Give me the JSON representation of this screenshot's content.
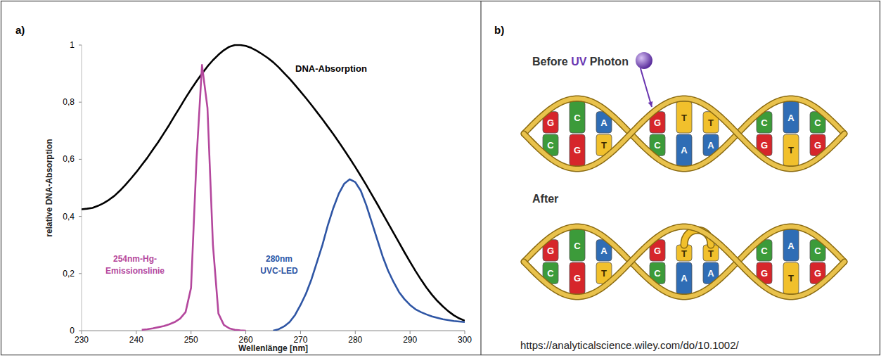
{
  "chart_data": {
    "type": "line",
    "xlabel": "Wellenlänge [nm]",
    "ylabel": "relative DNA-Absorption",
    "x": [
      230,
      231,
      232,
      233,
      234,
      235,
      236,
      237,
      238,
      239,
      240,
      241,
      242,
      243,
      244,
      245,
      246,
      247,
      248,
      249,
      250,
      251,
      252,
      253,
      254,
      255,
      256,
      257,
      258,
      259,
      260,
      261,
      262,
      263,
      264,
      265,
      266,
      267,
      268,
      269,
      270,
      271,
      272,
      273,
      274,
      275,
      276,
      277,
      278,
      279,
      280,
      281,
      282,
      283,
      284,
      285,
      286,
      287,
      288,
      289,
      290,
      291,
      292,
      293,
      294,
      295,
      296,
      297,
      298,
      299,
      300
    ],
    "series": [
      {
        "name": "DNA-Absorption",
        "color": "#000000",
        "line_style": "solid",
        "values": [
          0.425,
          0.427,
          0.43,
          0.437,
          0.446,
          0.458,
          0.472,
          0.49,
          0.51,
          0.532,
          0.555,
          0.58,
          0.605,
          0.633,
          0.66,
          0.69,
          0.72,
          0.752,
          0.783,
          0.815,
          0.845,
          0.873,
          0.9,
          0.925,
          0.947,
          0.966,
          0.982,
          0.994,
          1.0,
          1.0,
          0.997,
          0.99,
          0.98,
          0.968,
          0.955,
          0.94,
          0.922,
          0.902,
          0.882,
          0.86,
          0.837,
          0.814,
          0.79,
          0.765,
          0.74,
          0.714,
          0.688,
          0.66,
          0.632,
          0.603,
          0.573,
          0.542,
          0.51,
          0.477,
          0.444,
          0.41,
          0.376,
          0.342,
          0.308,
          0.274,
          0.241,
          0.209,
          0.179,
          0.151,
          0.126,
          0.104,
          0.085,
          0.068,
          0.054,
          0.043,
          0.035
        ]
      },
      {
        "name": "254nm-Hg-Emissionslinie",
        "color": "#b4479d",
        "line_style": "solid",
        "values": [
          null,
          null,
          null,
          null,
          null,
          null,
          null,
          null,
          null,
          null,
          null,
          0.003,
          0.005,
          0.008,
          0.012,
          0.016,
          0.022,
          0.03,
          0.042,
          0.065,
          0.15,
          0.6,
          0.93,
          0.78,
          0.3,
          0.06,
          0.02,
          0.008,
          0.003,
          0.001,
          0,
          null,
          null,
          null,
          null,
          null,
          null,
          null,
          null,
          null,
          null,
          null,
          null,
          null,
          null,
          null,
          null,
          null,
          null,
          null,
          null,
          null,
          null,
          null,
          null,
          null,
          null,
          null,
          null,
          null,
          null,
          null,
          null,
          null,
          null,
          null,
          null,
          null,
          null,
          null,
          null
        ]
      },
      {
        "name": "280nm UVC-LED",
        "color": "#2e55a4",
        "line_style": "solid",
        "values": [
          null,
          null,
          null,
          null,
          null,
          null,
          null,
          null,
          null,
          null,
          null,
          null,
          null,
          null,
          null,
          null,
          null,
          null,
          null,
          null,
          null,
          null,
          null,
          null,
          null,
          null,
          null,
          null,
          null,
          null,
          null,
          null,
          null,
          null,
          null,
          0,
          0.005,
          0.015,
          0.03,
          0.055,
          0.09,
          0.13,
          0.18,
          0.24,
          0.3,
          0.37,
          0.43,
          0.48,
          0.515,
          0.53,
          0.52,
          0.49,
          0.44,
          0.38,
          0.32,
          0.26,
          0.21,
          0.17,
          0.135,
          0.11,
          0.09,
          0.075,
          0.065,
          0.057,
          0.05,
          0.045,
          0.04,
          0.037,
          0.034,
          0.032,
          0.03
        ]
      }
    ],
    "xlim": [
      230,
      300
    ],
    "xticks": [
      230,
      240,
      250,
      260,
      270,
      280,
      290,
      300
    ],
    "ylim": [
      0,
      1
    ],
    "yticks": [
      0,
      {
        "value": 0.2,
        "label": "0,2"
      },
      {
        "value": 0.4,
        "label": "0,4"
      },
      {
        "value": 0.6,
        "label": "0,6"
      },
      {
        "value": 0.8,
        "label": "0,8"
      },
      1
    ],
    "grid": false
  },
  "panel_labels": [
    "a)",
    "b)"
  ],
  "diagram": {
    "before_label": [
      "Before",
      "UV",
      "Photon"
    ],
    "after_label": "After",
    "base_pairs": [
      [
        "G",
        "C"
      ],
      [
        "C",
        "G"
      ],
      [
        "A",
        "T"
      ],
      [
        "G",
        "C"
      ],
      [
        "T",
        "A"
      ],
      [
        "T",
        "A"
      ],
      [
        "C",
        "G"
      ],
      [
        "A",
        "T"
      ],
      [
        "C",
        "G"
      ]
    ]
  },
  "source": "https://analyticalscience.wiley.com/do/10.1002/"
}
